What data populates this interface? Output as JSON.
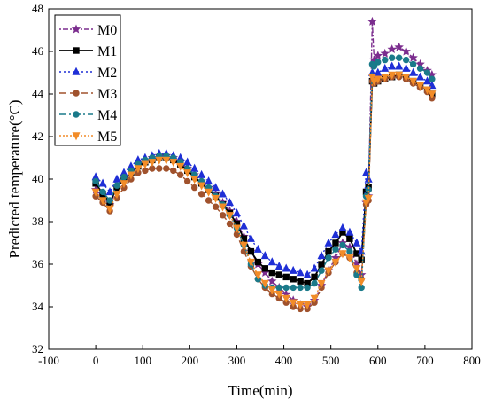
{
  "chart_data": {
    "type": "line",
    "xlabel": "Time(min)",
    "ylabel": "Predicted temperature(°C)",
    "xlim": [
      -100,
      800
    ],
    "ylim": [
      32,
      48
    ],
    "xticks": [
      -100,
      0,
      100,
      200,
      300,
      400,
      500,
      600,
      700,
      800
    ],
    "yticks": [
      32,
      34,
      36,
      38,
      40,
      42,
      44,
      46,
      48
    ],
    "legend_position": "top-left",
    "grid": false,
    "x": [
      0,
      15,
      30,
      45,
      60,
      75,
      90,
      105,
      120,
      135,
      150,
      165,
      180,
      195,
      210,
      225,
      240,
      255,
      270,
      285,
      300,
      315,
      330,
      345,
      360,
      375,
      390,
      405,
      420,
      435,
      450,
      465,
      480,
      495,
      510,
      525,
      540,
      555,
      565,
      575,
      580,
      588,
      592,
      600,
      615,
      630,
      645,
      660,
      675,
      690,
      705,
      715
    ],
    "series": [
      {
        "name": "M0",
        "color": "#7b2d8e",
        "marker": "star",
        "dash": "2,2,6,2",
        "values": [
          39.5,
          39.2,
          38.8,
          39.6,
          40.0,
          40.4,
          40.7,
          40.9,
          41.0,
          41.1,
          41.1,
          41.0,
          40.8,
          40.5,
          40.2,
          39.9,
          39.6,
          39.3,
          38.9,
          38.5,
          38.0,
          37.3,
          36.6,
          36.0,
          35.6,
          35.2,
          34.9,
          34.6,
          34.3,
          34.1,
          34.0,
          34.3,
          35.0,
          35.7,
          36.3,
          37.0,
          36.8,
          36.0,
          35.5,
          38.9,
          39.2,
          47.4,
          45.6,
          45.8,
          45.9,
          46.1,
          46.2,
          46.0,
          45.7,
          45.4,
          45.1,
          44.9
        ]
      },
      {
        "name": "M1",
        "color": "#000000",
        "marker": "square",
        "dash": "",
        "values": [
          39.8,
          39.3,
          38.9,
          39.6,
          40.0,
          40.3,
          40.6,
          40.8,
          40.9,
          41.0,
          41.0,
          40.9,
          40.7,
          40.4,
          40.1,
          39.8,
          39.5,
          39.2,
          38.8,
          38.4,
          37.9,
          37.2,
          36.6,
          36.1,
          35.8,
          35.6,
          35.5,
          35.4,
          35.3,
          35.2,
          35.1,
          35.4,
          36.0,
          36.6,
          37.0,
          37.5,
          37.2,
          36.5,
          36.2,
          39.4,
          39.6,
          44.6,
          44.5,
          44.6,
          44.7,
          44.8,
          44.9,
          44.8,
          44.6,
          44.4,
          44.2,
          44.0
        ]
      },
      {
        "name": "M2",
        "color": "#1f2fd6",
        "marker": "triangle",
        "dash": "2,3",
        "values": [
          40.1,
          39.8,
          39.4,
          40.0,
          40.3,
          40.6,
          40.9,
          41.0,
          41.1,
          41.2,
          41.2,
          41.1,
          41.0,
          40.8,
          40.5,
          40.2,
          39.9,
          39.6,
          39.3,
          38.9,
          38.4,
          37.8,
          37.2,
          36.7,
          36.4,
          36.1,
          35.9,
          35.8,
          35.7,
          35.6,
          35.5,
          35.8,
          36.4,
          37.0,
          37.4,
          37.7,
          37.5,
          37.0,
          36.6,
          40.3,
          40.0,
          45.0,
          44.8,
          45.0,
          45.2,
          45.3,
          45.3,
          45.2,
          45.0,
          44.8,
          44.6,
          44.4
        ]
      },
      {
        "name": "M3",
        "color": "#a0522d",
        "marker": "circle",
        "dash": "8,4",
        "values": [
          39.2,
          38.9,
          38.5,
          39.1,
          39.6,
          40.0,
          40.3,
          40.4,
          40.5,
          40.5,
          40.5,
          40.4,
          40.2,
          39.9,
          39.6,
          39.3,
          39.0,
          38.7,
          38.3,
          37.9,
          37.4,
          36.6,
          35.9,
          35.3,
          34.9,
          34.6,
          34.4,
          34.2,
          34.0,
          33.9,
          33.9,
          34.2,
          34.9,
          35.6,
          36.1,
          36.5,
          36.3,
          35.6,
          35.3,
          38.8,
          39.0,
          44.6,
          44.5,
          44.6,
          44.7,
          44.8,
          44.8,
          44.7,
          44.5,
          44.3,
          44.1,
          43.8
        ]
      },
      {
        "name": "M4",
        "color": "#1a7a8a",
        "marker": "circle",
        "dash": "8,3,2,3",
        "values": [
          39.9,
          39.4,
          39.0,
          39.7,
          40.1,
          40.4,
          40.7,
          40.9,
          41.0,
          41.1,
          41.1,
          41.0,
          40.8,
          40.5,
          40.2,
          39.9,
          39.6,
          39.2,
          38.8,
          38.3,
          37.7,
          36.9,
          36.0,
          35.3,
          35.0,
          34.9,
          34.9,
          34.9,
          34.9,
          34.9,
          34.9,
          35.1,
          35.7,
          36.3,
          36.7,
          36.9,
          36.6,
          35.5,
          34.9,
          39.2,
          39.5,
          45.4,
          45.3,
          45.5,
          45.6,
          45.7,
          45.7,
          45.6,
          45.4,
          45.2,
          45.0,
          44.7
        ]
      },
      {
        "name": "M5",
        "color": "#f28c28",
        "marker": "triangle-down",
        "dash": "2,2",
        "values": [
          39.4,
          39.0,
          38.6,
          39.3,
          39.8,
          40.2,
          40.5,
          40.7,
          40.8,
          40.9,
          40.9,
          40.8,
          40.6,
          40.3,
          40.0,
          39.7,
          39.4,
          39.1,
          38.7,
          38.3,
          37.7,
          36.9,
          36.1,
          35.5,
          35.1,
          34.8,
          34.6,
          34.4,
          34.2,
          34.1,
          34.1,
          34.4,
          35.1,
          35.7,
          36.1,
          36.5,
          36.3,
          35.8,
          35.2,
          38.9,
          39.1,
          44.8,
          44.6,
          44.7,
          44.8,
          44.9,
          44.9,
          44.8,
          44.6,
          44.4,
          44.2,
          44.0
        ]
      }
    ]
  }
}
